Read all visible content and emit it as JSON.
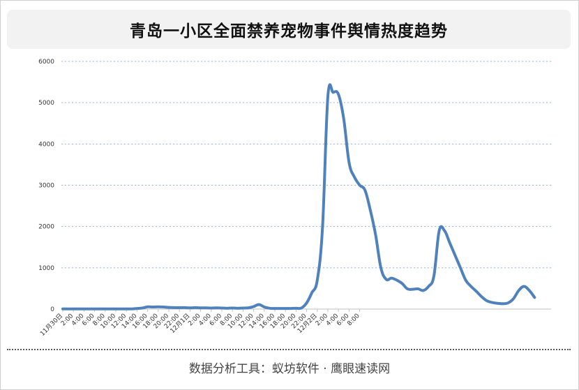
{
  "header": {
    "title": "青岛一小区全面禁养宠物事件舆情热度趋势"
  },
  "footer": {
    "text": "数据分析工具：蚁坊软件 · 鹰眼速读网"
  },
  "colors": {
    "line": "#4f81bd",
    "grid": "#8db3e2",
    "title_bg": "#f2f2f2"
  },
  "chart_data": {
    "type": "line",
    "title": "青岛一小区全面禁养宠物事件舆情热度趋势",
    "xlabel": "",
    "ylabel": "",
    "ylim": [
      0,
      6000
    ],
    "yticks": [
      0,
      1000,
      2000,
      3000,
      4000,
      5000,
      6000
    ],
    "grid": "horizontal dotted",
    "legend": "none",
    "x_tick_labels": [
      "11月30日",
      "2:00",
      "4:00",
      "6:00",
      "8:00",
      "10:00",
      "12:00",
      "14:00",
      "16:00",
      "18:00",
      "20:00",
      "22:00",
      "12月1日",
      "2:00",
      "4:00",
      "6:00",
      "8:00",
      "10:00",
      "12:00",
      "14:00",
      "16:00",
      "18:00",
      "20:00",
      "22:00",
      "12月2日",
      "2:00",
      "4:00",
      "6:00",
      "8:00"
    ],
    "x_tick_step_hours": 2,
    "series": [
      {
        "x_hours": [
          0,
          1,
          2,
          3,
          4,
          5,
          6,
          7,
          8,
          9,
          10,
          11,
          12,
          13,
          14,
          15,
          16,
          17,
          18,
          19,
          20,
          21,
          22,
          23,
          24,
          25,
          26,
          27,
          28,
          29,
          30,
          31,
          32,
          33,
          34,
          35,
          36,
          37,
          38,
          39,
          40,
          41,
          42,
          43,
          44,
          45,
          46,
          47,
          48,
          49,
          50,
          51,
          52,
          53,
          54,
          55,
          56,
          57,
          58,
          59,
          60,
          61,
          62,
          63,
          64,
          65,
          66,
          67,
          68,
          69,
          70,
          71,
          72,
          73,
          74,
          75,
          76,
          77,
          78,
          79,
          80,
          81,
          82,
          83,
          84,
          85,
          86,
          87,
          88,
          89
        ],
        "values": [
          5,
          5,
          5,
          5,
          5,
          5,
          5,
          5,
          5,
          5,
          5,
          5,
          5,
          5,
          15,
          25,
          55,
          50,
          55,
          50,
          40,
          35,
          35,
          35,
          30,
          35,
          30,
          30,
          25,
          30,
          25,
          20,
          25,
          20,
          25,
          30,
          60,
          110,
          50,
          20,
          15,
          15,
          15,
          15,
          20,
          25,
          150,
          400,
          700,
          2000,
          5150,
          5250,
          5200,
          4600,
          3550,
          3200,
          3000,
          2880,
          2400,
          1800,
          1000,
          720,
          750,
          700,
          620,
          490,
          480,
          490,
          450,
          550,
          800,
          1900,
          1900,
          1600,
          1300,
          1000,
          700,
          550,
          430,
          300,
          200,
          160,
          140,
          130,
          150,
          250,
          450,
          550,
          450,
          280
        ]
      }
    ]
  }
}
